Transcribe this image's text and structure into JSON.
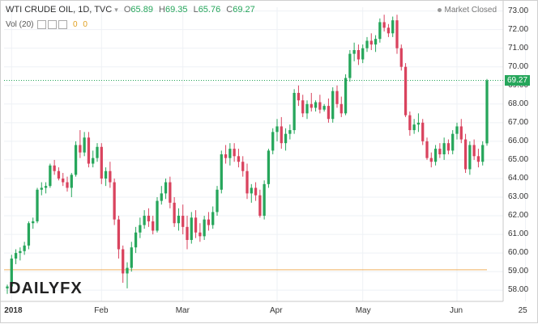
{
  "header": {
    "symbol": "WTI CRUDE OIL, 1D, TVC",
    "open_label": "O",
    "open": "65.89",
    "high_label": "H",
    "high": "69.35",
    "low_label": "L",
    "low": "65.76",
    "close_label": "C",
    "close": "69.27"
  },
  "volume": {
    "label": "Vol (20)",
    "v1": "0",
    "v2": "0"
  },
  "market_status": "Market Closed",
  "logo": {
    "daily": "DAILY",
    "fx": "FX"
  },
  "current_price_label": "69.27",
  "colors": {
    "up": "#26a65b",
    "down": "#d9435e",
    "support": "#f0b060",
    "price_line": "#26a65b"
  },
  "chart_data": {
    "type": "candlestick",
    "y_axis": {
      "min": 57.4,
      "max": 73.2,
      "ticks": [
        "58.00",
        "59.00",
        "60.00",
        "61.00",
        "62.00",
        "63.00",
        "64.00",
        "65.00",
        "66.00",
        "67.00",
        "68.00",
        "69.00",
        "70.00",
        "71.00",
        "72.00",
        "73.00"
      ],
      "position": "right"
    },
    "x_axis": {
      "ticks": [
        {
          "label": "2018",
          "bold": true,
          "index": 1
        },
        {
          "label": "Feb",
          "bold": false,
          "index": 22
        },
        {
          "label": "Mar",
          "bold": false,
          "index": 41
        },
        {
          "label": "Apr",
          "bold": false,
          "index": 63
        },
        {
          "label": "May",
          "bold": false,
          "index": 83
        },
        {
          "label": "Jun",
          "bold": false,
          "index": 105
        },
        {
          "label": "25",
          "bold": false,
          "index": 121
        }
      ]
    },
    "support_level": 59.1,
    "current_price": 69.27,
    "ohlc": [
      [
        58.1,
        58.3,
        57.8,
        58.2
      ],
      [
        58.2,
        59.9,
        58.1,
        59.7
      ],
      [
        59.7,
        60.2,
        59.4,
        60.0
      ],
      [
        60.0,
        60.3,
        59.6,
        60.1
      ],
      [
        60.1,
        60.6,
        59.9,
        60.4
      ],
      [
        60.4,
        61.7,
        60.2,
        61.6
      ],
      [
        61.6,
        61.9,
        61.3,
        61.7
      ],
      [
        61.7,
        63.5,
        61.6,
        63.4
      ],
      [
        63.4,
        63.8,
        63.1,
        63.5
      ],
      [
        63.5,
        63.8,
        63.2,
        63.6
      ],
      [
        63.6,
        64.8,
        63.5,
        64.7
      ],
      [
        64.7,
        65.0,
        64.2,
        64.4
      ],
      [
        64.4,
        64.6,
        63.9,
        64.0
      ],
      [
        64.0,
        64.3,
        63.6,
        63.8
      ],
      [
        63.8,
        64.1,
        63.3,
        63.5
      ],
      [
        63.5,
        64.3,
        63.0,
        64.2
      ],
      [
        64.2,
        66.0,
        64.1,
        65.8
      ],
      [
        65.8,
        66.6,
        65.1,
        65.4
      ],
      [
        65.4,
        66.5,
        65.2,
        66.2
      ],
      [
        66.2,
        66.5,
        64.6,
        64.8
      ],
      [
        64.8,
        65.5,
        64.6,
        65.1
      ],
      [
        65.1,
        65.9,
        64.9,
        65.7
      ],
      [
        65.7,
        65.9,
        63.7,
        64.0
      ],
      [
        64.0,
        64.6,
        63.6,
        64.4
      ],
      [
        64.4,
        64.9,
        63.5,
        63.8
      ],
      [
        63.8,
        64.0,
        61.5,
        61.8
      ],
      [
        61.8,
        62.0,
        59.7,
        60.2
      ],
      [
        60.2,
        60.4,
        58.4,
        58.9
      ],
      [
        58.9,
        59.5,
        58.1,
        59.2
      ],
      [
        59.2,
        60.6,
        59.0,
        60.3
      ],
      [
        60.3,
        61.4,
        60.0,
        61.1
      ],
      [
        61.1,
        61.9,
        60.8,
        61.5
      ],
      [
        61.5,
        62.3,
        61.3,
        62.0
      ],
      [
        62.0,
        62.4,
        61.4,
        61.7
      ],
      [
        61.7,
        62.0,
        61.0,
        61.2
      ],
      [
        61.2,
        63.0,
        61.1,
        62.8
      ],
      [
        62.8,
        63.6,
        62.6,
        63.2
      ],
      [
        63.2,
        64.0,
        62.9,
        63.8
      ],
      [
        63.8,
        64.1,
        62.4,
        62.7
      ],
      [
        62.7,
        63.0,
        61.4,
        61.6
      ],
      [
        61.6,
        62.4,
        61.2,
        62.0
      ],
      [
        62.0,
        62.6,
        61.0,
        61.4
      ],
      [
        61.4,
        62.0,
        60.2,
        60.7
      ],
      [
        60.7,
        62.2,
        60.5,
        61.9
      ],
      [
        61.9,
        62.3,
        60.8,
        61.1
      ],
      [
        61.1,
        61.6,
        60.6,
        60.9
      ],
      [
        60.9,
        62.0,
        60.7,
        61.8
      ],
      [
        61.8,
        62.2,
        61.2,
        61.5
      ],
      [
        61.5,
        62.5,
        61.3,
        62.2
      ],
      [
        62.2,
        63.6,
        62.0,
        63.4
      ],
      [
        63.4,
        65.5,
        63.2,
        65.3
      ],
      [
        65.3,
        65.8,
        64.8,
        65.1
      ],
      [
        65.1,
        65.9,
        64.7,
        65.6
      ],
      [
        65.6,
        65.9,
        64.9,
        65.2
      ],
      [
        65.2,
        65.6,
        64.6,
        64.9
      ],
      [
        64.9,
        65.2,
        64.1,
        64.4
      ],
      [
        64.4,
        64.8,
        62.9,
        63.2
      ],
      [
        63.2,
        63.7,
        62.7,
        63.5
      ],
      [
        63.5,
        63.8,
        62.8,
        63.1
      ],
      [
        63.1,
        63.4,
        61.9,
        62.0
      ],
      [
        62.0,
        63.9,
        61.8,
        63.7
      ],
      [
        63.7,
        65.6,
        63.5,
        65.5
      ],
      [
        65.5,
        66.7,
        65.3,
        66.5
      ],
      [
        66.5,
        67.2,
        66.0,
        66.8
      ],
      [
        66.8,
        67.3,
        65.6,
        65.9
      ],
      [
        65.9,
        66.7,
        65.5,
        66.4
      ],
      [
        66.4,
        66.9,
        66.1,
        66.6
      ],
      [
        66.6,
        68.8,
        66.4,
        68.6
      ],
      [
        68.6,
        69.0,
        67.9,
        68.2
      ],
      [
        68.2,
        68.5,
        67.3,
        67.5
      ],
      [
        67.5,
        68.2,
        67.2,
        68.0
      ],
      [
        68.0,
        68.6,
        67.6,
        67.8
      ],
      [
        67.8,
        68.2,
        67.6,
        68.1
      ],
      [
        68.1,
        68.5,
        67.5,
        67.7
      ],
      [
        67.7,
        68.0,
        67.6,
        67.9
      ],
      [
        67.9,
        68.3,
        67.0,
        67.2
      ],
      [
        67.2,
        68.9,
        67.0,
        68.7
      ],
      [
        68.7,
        69.0,
        67.8,
        68.0
      ],
      [
        68.0,
        68.4,
        67.3,
        67.5
      ],
      [
        67.5,
        69.6,
        67.4,
        69.4
      ],
      [
        69.4,
        70.9,
        69.2,
        70.7
      ],
      [
        70.7,
        71.3,
        70.3,
        70.9
      ],
      [
        70.9,
        71.2,
        70.1,
        70.4
      ],
      [
        70.4,
        71.2,
        70.2,
        71.0
      ],
      [
        71.0,
        71.6,
        70.8,
        71.4
      ],
      [
        71.4,
        71.8,
        70.9,
        71.2
      ],
      [
        71.2,
        71.7,
        70.8,
        71.5
      ],
      [
        71.5,
        72.6,
        71.3,
        72.4
      ],
      [
        72.4,
        72.8,
        71.9,
        72.1
      ],
      [
        72.1,
        72.3,
        71.6,
        71.8
      ],
      [
        71.8,
        72.7,
        71.6,
        72.5
      ],
      [
        72.5,
        72.8,
        70.7,
        71.0
      ],
      [
        71.0,
        71.2,
        69.8,
        70.0
      ],
      [
        70.0,
        70.2,
        67.3,
        67.4
      ],
      [
        67.4,
        67.6,
        66.3,
        66.6
      ],
      [
        66.6,
        67.2,
        66.4,
        66.9
      ],
      [
        66.9,
        67.5,
        66.5,
        67.0
      ],
      [
        67.0,
        67.2,
        65.8,
        66.0
      ],
      [
        66.0,
        66.2,
        65.0,
        65.1
      ],
      [
        65.1,
        65.4,
        64.6,
        64.9
      ],
      [
        64.9,
        65.8,
        64.7,
        65.6
      ],
      [
        65.6,
        65.9,
        65.1,
        65.3
      ],
      [
        65.3,
        66.2,
        65.0,
        65.9
      ],
      [
        65.9,
        66.1,
        65.3,
        65.5
      ],
      [
        65.5,
        66.6,
        65.3,
        66.4
      ],
      [
        66.4,
        67.0,
        66.1,
        66.8
      ],
      [
        66.8,
        67.2,
        65.9,
        66.1
      ],
      [
        66.1,
        66.4,
        64.3,
        64.5
      ],
      [
        64.5,
        66.0,
        64.2,
        65.8
      ],
      [
        65.8,
        66.1,
        65.0,
        65.2
      ],
      [
        65.2,
        65.6,
        64.6,
        64.9
      ],
      [
        64.9,
        66.0,
        64.7,
        65.8
      ],
      [
        65.89,
        69.35,
        65.76,
        69.27
      ]
    ]
  }
}
